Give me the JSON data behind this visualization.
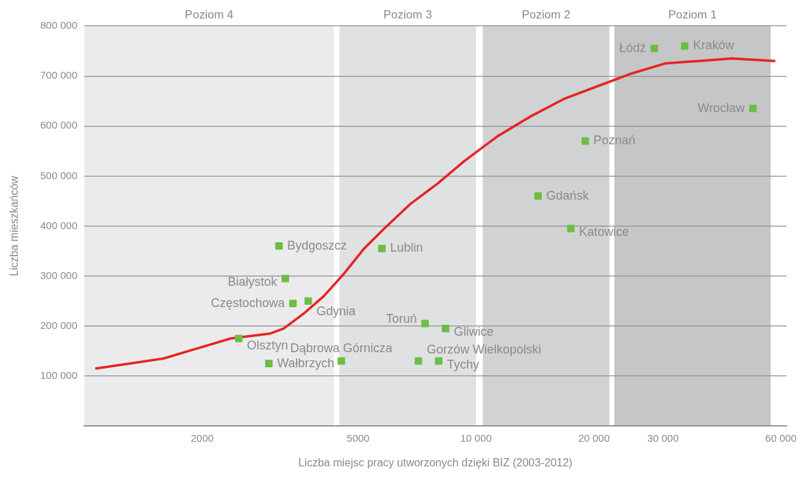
{
  "chart_data": {
    "type": "scatter",
    "xlabel": "Liczba miejsc pracy utworzonych dzięki BIZ (2003-2012)",
    "ylabel": "Liczba mieszkańców",
    "log": "x",
    "grid": "y",
    "xlim": [
      1000,
      62000
    ],
    "xticks": [
      2000,
      5000,
      {
        "value": 10000,
        "label": "10 000"
      },
      {
        "value": 20000,
        "label": "20 000"
      },
      {
        "value": 30000,
        "label": "30 000"
      },
      {
        "value": 60000,
        "label": "60 000"
      }
    ],
    "ylim": [
      0,
      800000
    ],
    "yticks": [
      {
        "value": 100000,
        "label": "100 000"
      },
      {
        "value": 200000,
        "label": "200 000"
      },
      {
        "value": 300000,
        "label": "300 000"
      },
      {
        "value": 400000,
        "label": "400 000"
      },
      {
        "value": 500000,
        "label": "500 000"
      },
      {
        "value": 600000,
        "label": "600 000"
      },
      {
        "value": 700000,
        "label": "700 000"
      },
      {
        "value": 800000,
        "label": "800 000"
      }
    ],
    "bands": [
      {
        "axis": "x",
        "from": 1000,
        "to": 4340,
        "label": "Poziom 4",
        "color": "#ebebed"
      },
      {
        "axis": "x",
        "from": 4480,
        "to": 10000,
        "label": "Poziom 3",
        "color": "#e0e1e3"
      },
      {
        "axis": "x",
        "from": 10400,
        "to": 21900,
        "label": "Poziom 2",
        "color": "#d1d2d4"
      },
      {
        "axis": "x",
        "from": 22540,
        "to": 56500,
        "label": "Poziom 1",
        "color": "#c5c6c8"
      }
    ],
    "series": [
      {
        "type": "line",
        "color": "#e52421",
        "marker": "none",
        "line_style": "solid",
        "x": [
          1067,
          1310,
          1593,
          1940,
          2362,
          2986,
          3230,
          3634,
          4090,
          4605,
          5180,
          5830,
          6820,
          7980,
          9340,
          11370,
          13840,
          16850,
          20500,
          24950,
          30350,
          36960,
          44980,
          58070
        ],
        "values": [
          115000,
          125000,
          135000,
          155000,
          175000,
          185000,
          195000,
          225000,
          260000,
          305000,
          355000,
          395000,
          445000,
          485000,
          530000,
          580000,
          620000,
          655000,
          680000,
          705000,
          725000,
          730000,
          735000,
          730000
        ]
      },
      {
        "type": "scatter",
        "color": "#6cbd45",
        "marker": "square",
        "x": [
          28500,
          34100,
          50900,
          19000,
          14400,
          17450,
          5750,
          3140,
          3260,
          3410,
          3730,
          2480,
          2960,
          4530,
          7410,
          8360,
          7130,
          8030
        ],
        "values": [
          755000,
          760000,
          635000,
          570000,
          460000,
          395000,
          355000,
          360000,
          295000,
          245000,
          250000,
          175000,
          125000,
          130000,
          205000,
          195000,
          130000,
          130000
        ],
        "value_labels": [
          "Łódź",
          "Kraków",
          "Wrocław",
          "Poznań",
          "Gdańsk",
          "Katowice",
          "Lublin",
          "Bydgoszcz",
          "Białystok",
          "Częstochowa",
          "Gdynia",
          "Olsztyn",
          "Wałbrzych",
          "Dąbrowa Górnicza",
          "Toruń",
          "Gliwice",
          "Gorzów Wielkopolski",
          "Tychy"
        ]
      }
    ]
  }
}
